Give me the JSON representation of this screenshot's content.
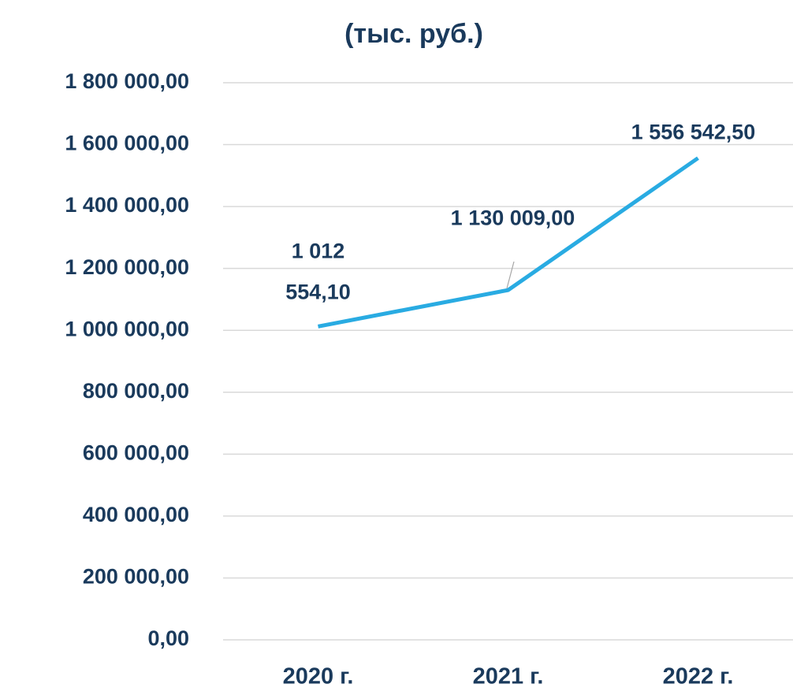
{
  "chart_data": {
    "type": "line",
    "title": "(тыс. руб.)",
    "categories": [
      "2020 г.",
      "2021 г.",
      "2022 г."
    ],
    "series": [
      {
        "name": null,
        "color": "#29abe2",
        "values": [
          1012554.1,
          1130009.0,
          1556542.5
        ],
        "value_labels": [
          "1 012 554,10",
          "1 130 009,00",
          "1 556 542,50"
        ]
      }
    ],
    "ylim": [
      0,
      1800000
    ],
    "yticks": [
      {
        "value": 0,
        "label": "0,00"
      },
      {
        "value": 200000,
        "label": "200 000,00"
      },
      {
        "value": 400000,
        "label": "400 000,00"
      },
      {
        "value": 600000,
        "label": "600 000,00"
      },
      {
        "value": 800000,
        "label": "800 000,00"
      },
      {
        "value": 1000000,
        "label": "1 000 000,00"
      },
      {
        "value": 1200000,
        "label": "1 200 000,00"
      },
      {
        "value": 1400000,
        "label": "1 400 000,00"
      },
      {
        "value": 1600000,
        "label": "1 600 000,00"
      },
      {
        "value": 1800000,
        "label": "1 800 000,00"
      }
    ],
    "grid": true
  }
}
